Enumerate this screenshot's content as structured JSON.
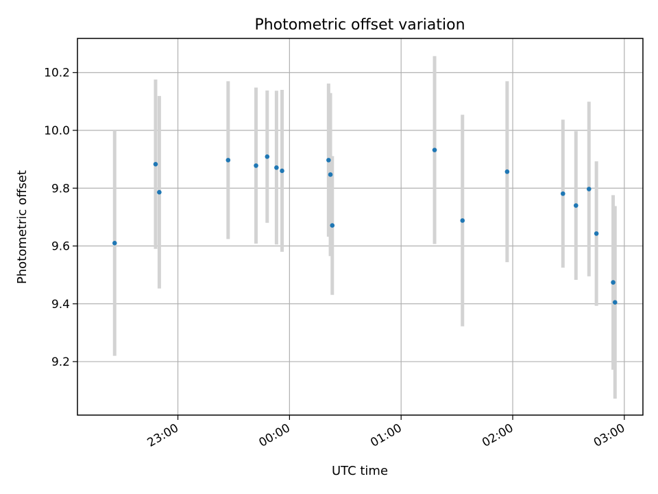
{
  "chart_data": {
    "type": "scatter",
    "title": "Photometric offset variation",
    "xlabel": "UTC time",
    "ylabel": "Photometric offset",
    "x_ticks": [
      "23:00",
      "00:00",
      "01:00",
      "02:00",
      "03:00"
    ],
    "x_tick_values": [
      1380,
      1440,
      1500,
      1560,
      1620
    ],
    "y_ticks": [
      "9.2",
      "9.4",
      "9.6",
      "9.8",
      "10.0",
      "10.2"
    ],
    "y_tick_values": [
      9.2,
      9.4,
      9.6,
      9.8,
      10.0,
      10.2
    ],
    "xlim": [
      1326,
      1630
    ],
    "ylim": [
      9.015,
      10.318
    ],
    "grid": true,
    "colors": {
      "marker": "#1f77b4",
      "errorbar": "#d3d3d3",
      "grid": "#b0b0b0"
    },
    "points": [
      {
        "x": "22:26",
        "y": 9.61,
        "err": 0.39
      },
      {
        "x": "22:48",
        "y": 9.883,
        "err": 0.293
      },
      {
        "x": "22:50",
        "y": 9.786,
        "err": 0.333
      },
      {
        "x": "23:27",
        "y": 9.897,
        "err": 0.273
      },
      {
        "x": "23:42",
        "y": 9.878,
        "err": 0.27
      },
      {
        "x": "23:48",
        "y": 9.909,
        "err": 0.229
      },
      {
        "x": "23:53",
        "y": 9.871,
        "err": 0.266
      },
      {
        "x": "23:56",
        "y": 9.86,
        "err": 0.28
      },
      {
        "x": "00:21",
        "y": 9.897,
        "err": 0.265
      },
      {
        "x": "00:22",
        "y": 9.847,
        "err": 0.282
      },
      {
        "x": "00:23",
        "y": 9.671,
        "err": 0.24
      },
      {
        "x": "01:18",
        "y": 9.932,
        "err": 0.325
      },
      {
        "x": "01:33",
        "y": 9.688,
        "err": 0.366
      },
      {
        "x": "01:57",
        "y": 9.857,
        "err": 0.313
      },
      {
        "x": "02:27",
        "y": 9.781,
        "err": 0.256
      },
      {
        "x": "02:34",
        "y": 9.74,
        "err": 0.257
      },
      {
        "x": "02:41",
        "y": 9.797,
        "err": 0.302
      },
      {
        "x": "02:45",
        "y": 9.643,
        "err": 0.25
      },
      {
        "x": "02:54",
        "y": 9.474,
        "err": 0.302
      },
      {
        "x": "02:55",
        "y": 9.405,
        "err": 0.333
      }
    ]
  }
}
